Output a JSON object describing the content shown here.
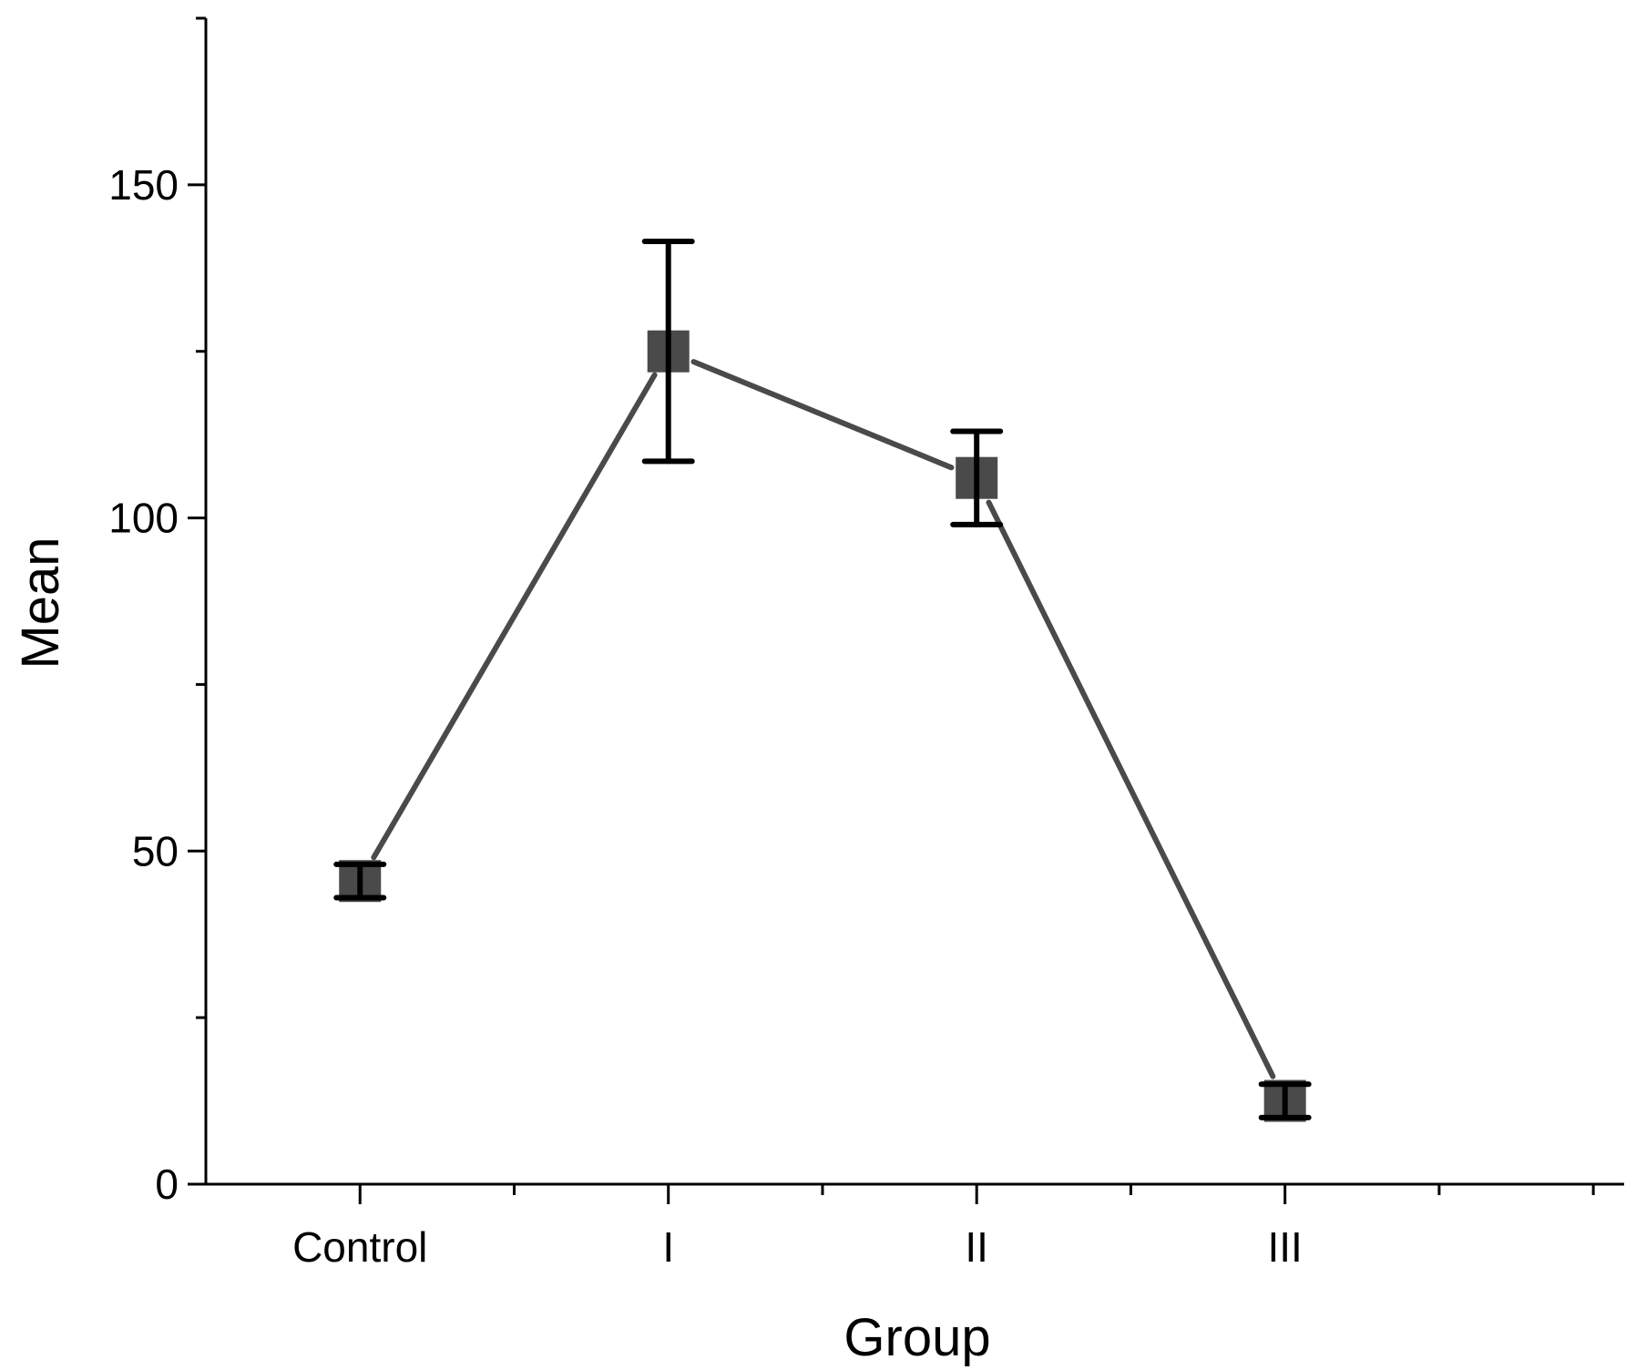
{
  "chart_data": {
    "type": "line",
    "title": "",
    "xlabel": "Group",
    "ylabel": "Mean",
    "categories": [
      "Control",
      "I",
      "II",
      "III"
    ],
    "series": [
      {
        "name": "Mean",
        "values": [
          45.5,
          125,
          106,
          12.5
        ],
        "error": [
          2.5,
          16.5,
          7,
          2.5
        ]
      }
    ],
    "ylim": [
      0,
      175
    ],
    "yticks": [
      0,
      50,
      100,
      150
    ],
    "legend": "none",
    "grid": false,
    "colors": {
      "line": "#4a4a4a",
      "marker": "#4a4a4a",
      "error_bar": "#000000",
      "axis": "#000000"
    }
  }
}
